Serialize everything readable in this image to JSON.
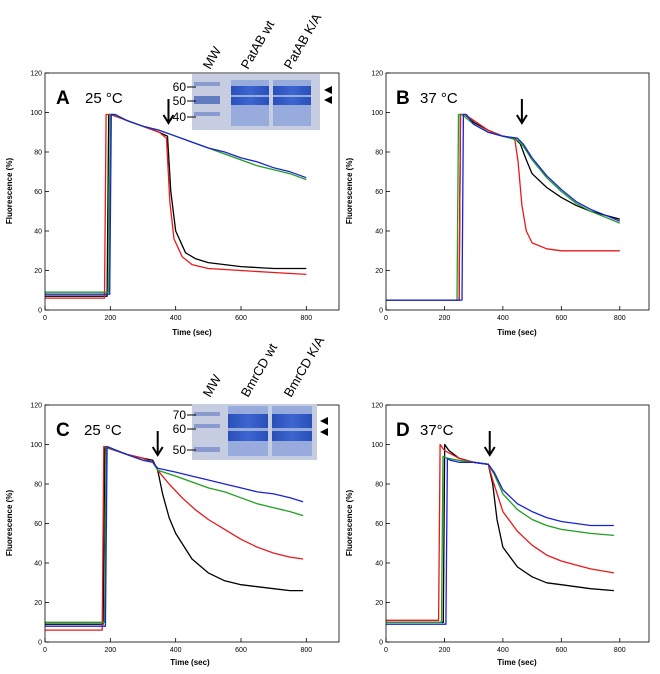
{
  "chart_data": [
    {
      "type": "line",
      "panel_label": "A",
      "temperature_label": "25 °C",
      "xlabel": "Time (sec)",
      "ylabel": "Fluorescence (%)",
      "xlim": [
        0,
        900
      ],
      "ylim": [
        0,
        120
      ],
      "xticks": [
        0,
        200,
        400,
        600,
        800
      ],
      "yticks": [
        0,
        20,
        40,
        60,
        80,
        100,
        120
      ],
      "grid": false,
      "addition_arrow_time": 378,
      "series": [
        {
          "color": "#000000",
          "x": [
            0,
            190,
            195,
            210,
            250,
            300,
            350,
            375,
            385,
            400,
            430,
            460,
            500,
            600,
            700,
            800
          ],
          "y": [
            7,
            7,
            99,
            99,
            96,
            93,
            90,
            88,
            60,
            40,
            29,
            26,
            24,
            22,
            21,
            21
          ]
        },
        {
          "color": "#e8191b",
          "x": [
            0,
            182,
            187,
            200,
            250,
            300,
            350,
            372,
            382,
            395,
            420,
            450,
            500,
            600,
            700,
            800
          ],
          "y": [
            6,
            6,
            99,
            99,
            96,
            93,
            90,
            87,
            55,
            36,
            27,
            23,
            21,
            20,
            19,
            18
          ]
        },
        {
          "color": "#1f9e1f",
          "x": [
            0,
            195,
            200,
            210,
            250,
            300,
            350,
            400,
            450,
            500,
            550,
            600,
            650,
            700,
            750,
            800
          ],
          "y": [
            9,
            9,
            99,
            99,
            96,
            93,
            91,
            88,
            85,
            82,
            79,
            76,
            73,
            71,
            69,
            66
          ]
        },
        {
          "color": "#1a23d4",
          "x": [
            0,
            198,
            203,
            215,
            250,
            300,
            350,
            400,
            450,
            500,
            550,
            600,
            650,
            700,
            750,
            800
          ],
          "y": [
            8,
            8,
            99,
            99,
            96,
            93,
            91,
            88,
            85,
            82,
            80,
            77,
            75,
            72,
            70,
            67
          ]
        }
      ]
    },
    {
      "type": "line",
      "panel_label": "B",
      "temperature_label": "37 °C",
      "xlabel": "Time (sec)",
      "ylabel": "Fluorescence (%)",
      "xlim": [
        0,
        900
      ],
      "ylim": [
        0,
        120
      ],
      "xticks": [
        0,
        200,
        400,
        600,
        800
      ],
      "yticks": [
        0,
        20,
        40,
        60,
        80,
        100,
        120
      ],
      "grid": false,
      "addition_arrow_time": 465,
      "series": [
        {
          "color": "#000000",
          "x": [
            0,
            250,
            255,
            270,
            300,
            350,
            400,
            440,
            460,
            480,
            500,
            550,
            600,
            650,
            700,
            750,
            800
          ],
          "y": [
            5,
            5,
            99,
            99,
            95,
            91,
            88,
            87,
            84,
            76,
            69,
            62,
            57,
            53,
            50,
            48,
            46
          ]
        },
        {
          "color": "#e8191b",
          "x": [
            0,
            250,
            255,
            270,
            300,
            350,
            400,
            440,
            452,
            465,
            480,
            500,
            550,
            600,
            650,
            700,
            750,
            800
          ],
          "y": [
            5,
            5,
            99,
            99,
            96,
            91,
            88,
            87,
            75,
            53,
            40,
            34,
            31,
            30,
            30,
            30,
            30,
            30
          ]
        },
        {
          "color": "#1f9e1f",
          "x": [
            0,
            243,
            248,
            260,
            300,
            350,
            400,
            450,
            470,
            500,
            550,
            600,
            650,
            700,
            750,
            800
          ],
          "y": [
            5,
            5,
            99,
            99,
            94,
            90,
            88,
            86,
            83,
            76,
            67,
            60,
            54,
            50,
            47,
            44
          ]
        },
        {
          "color": "#1a23d4",
          "x": [
            0,
            260,
            265,
            275,
            300,
            350,
            400,
            450,
            470,
            500,
            550,
            600,
            650,
            700,
            750,
            800
          ],
          "y": [
            5,
            5,
            99,
            99,
            94,
            90,
            88,
            87,
            84,
            77,
            68,
            61,
            55,
            51,
            48,
            45
          ]
        }
      ]
    },
    {
      "type": "line",
      "panel_label": "C",
      "temperature_label": "25 °C",
      "xlabel": "Time (sec)",
      "ylabel": "Fluorescence (%)",
      "xlim": [
        0,
        900
      ],
      "ylim": [
        0,
        120
      ],
      "xticks": [
        0,
        200,
        400,
        600,
        800
      ],
      "yticks": [
        0,
        20,
        40,
        60,
        80,
        100,
        120
      ],
      "grid": false,
      "addition_arrow_time": 345,
      "series": [
        {
          "color": "#000000",
          "x": [
            0,
            178,
            183,
            200,
            250,
            300,
            330,
            345,
            360,
            380,
            400,
            450,
            500,
            550,
            600,
            650,
            700,
            750,
            790
          ],
          "y": [
            9,
            9,
            99,
            98,
            95,
            93,
            92,
            87,
            75,
            63,
            55,
            42,
            35,
            31,
            29,
            28,
            27,
            26,
            26
          ]
        },
        {
          "color": "#e8191b",
          "x": [
            0,
            175,
            180,
            195,
            250,
            300,
            330,
            345,
            380,
            420,
            460,
            500,
            550,
            600,
            650,
            700,
            750,
            790
          ],
          "y": [
            6,
            6,
            99,
            98,
            95,
            93,
            91,
            87,
            80,
            73,
            67,
            62,
            57,
            52,
            48,
            45,
            43,
            42
          ]
        },
        {
          "color": "#1f9e1f",
          "x": [
            0,
            182,
            187,
            200,
            250,
            300,
            330,
            345,
            400,
            450,
            500,
            550,
            600,
            650,
            700,
            750,
            790
          ],
          "y": [
            10,
            10,
            99,
            98,
            95,
            92,
            91,
            87,
            84,
            81,
            78,
            76,
            73,
            70,
            68,
            66,
            64
          ]
        },
        {
          "color": "#1a23d4",
          "x": [
            0,
            185,
            190,
            205,
            250,
            300,
            330,
            345,
            400,
            450,
            500,
            550,
            600,
            650,
            700,
            750,
            790
          ],
          "y": [
            8,
            8,
            99,
            98,
            95,
            92,
            91,
            88,
            86,
            84,
            82,
            80,
            78,
            76,
            75,
            73,
            71
          ]
        }
      ]
    },
    {
      "type": "line",
      "panel_label": "D",
      "temperature_label": "37°C",
      "xlabel": "Time (sec)",
      "ylabel": "Fluorescence (%)",
      "xlim": [
        0,
        900
      ],
      "ylim": [
        0,
        120
      ],
      "xticks": [
        0,
        200,
        400,
        600,
        800
      ],
      "yticks": [
        0,
        20,
        40,
        60,
        80,
        100,
        120
      ],
      "grid": false,
      "addition_arrow_time": 355,
      "series": [
        {
          "color": "#000000",
          "x": [
            0,
            196,
            201,
            215,
            250,
            300,
            350,
            365,
            380,
            400,
            450,
            500,
            550,
            600,
            650,
            700,
            780
          ],
          "y": [
            10,
            10,
            100,
            97,
            93,
            91,
            90,
            80,
            62,
            48,
            38,
            33,
            30,
            29,
            28,
            27,
            26
          ]
        },
        {
          "color": "#e8191b",
          "x": [
            0,
            180,
            185,
            200,
            250,
            300,
            350,
            365,
            400,
            450,
            500,
            550,
            600,
            650,
            700,
            780
          ],
          "y": [
            11,
            11,
            100,
            97,
            93,
            91,
            90,
            82,
            66,
            56,
            49,
            44,
            41,
            39,
            37,
            35
          ]
        },
        {
          "color": "#1f9e1f",
          "x": [
            0,
            190,
            195,
            210,
            250,
            300,
            350,
            370,
            400,
            450,
            500,
            550,
            600,
            650,
            700,
            780
          ],
          "y": [
            10,
            10,
            94,
            93,
            92,
            91,
            90,
            85,
            75,
            67,
            62,
            59,
            57,
            56,
            55,
            54
          ]
        },
        {
          "color": "#1a23d4",
          "x": [
            0,
            205,
            210,
            220,
            250,
            300,
            350,
            370,
            400,
            450,
            500,
            550,
            600,
            650,
            700,
            780
          ],
          "y": [
            9,
            9,
            93,
            92,
            91,
            91,
            90,
            86,
            77,
            70,
            66,
            63,
            61,
            60,
            59,
            59
          ]
        }
      ]
    }
  ],
  "gels": [
    {
      "panel": "A",
      "lane_headers": [
        "MW",
        "PatAB wt",
        "PatAB K/A"
      ],
      "mw_markers": [
        "60",
        "50",
        "40"
      ]
    },
    {
      "panel": "C",
      "lane_headers": [
        "MW",
        "BmrCD wt",
        "BmrCD K/A"
      ],
      "mw_markers": [
        "70",
        "60",
        "50"
      ]
    }
  ]
}
